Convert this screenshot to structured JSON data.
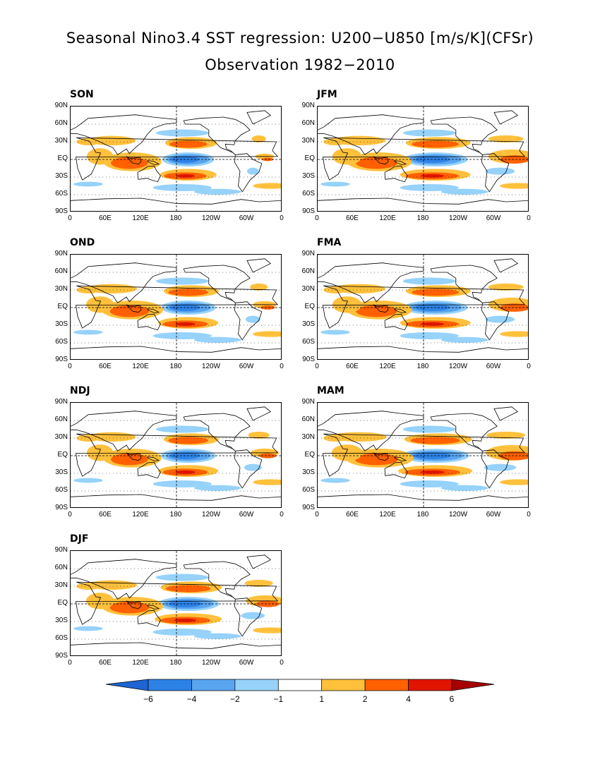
{
  "title_line1": "Seasonal Nino3.4 SST regression: U200−U850 [m/s/K](CFSr)",
  "title_line2": "Observation 1982−2010",
  "lat_ticks": [
    "90N",
    "60N",
    "30N",
    "EQ",
    "30S",
    "60S",
    "90S"
  ],
  "lon_ticks": [
    "0",
    "60E",
    "120E",
    "180",
    "120W",
    "60W",
    "0"
  ],
  "panels": [
    {
      "label": "SON",
      "strength": 0.8,
      "atlantic": 0.4,
      "west_pos": 0.9
    },
    {
      "label": "JFM",
      "strength": 1.0,
      "atlantic": 1.0,
      "west_pos": 1.0
    },
    {
      "label": "OND",
      "strength": 0.85,
      "atlantic": 0.5,
      "west_pos": 0.95
    },
    {
      "label": "FMA",
      "strength": 1.0,
      "atlantic": 1.0,
      "west_pos": 1.0
    },
    {
      "label": "NDJ",
      "strength": 0.85,
      "atlantic": 0.6,
      "west_pos": 0.9
    },
    {
      "label": "MAM",
      "strength": 1.05,
      "atlantic": 1.1,
      "west_pos": 1.05
    },
    {
      "label": "DJF",
      "strength": 0.95,
      "atlantic": 0.8,
      "west_pos": 0.95
    }
  ],
  "colorbar": {
    "labels": [
      "−6",
      "−4",
      "−2",
      "−1",
      "1",
      "2",
      "4",
      "6"
    ],
    "colors": [
      "#1e64d2",
      "#2d82e6",
      "#5aa5f0",
      "#96d2fa",
      "#ffffff",
      "#ffc03c",
      "#ff6000",
      "#e11400",
      "#a50000"
    ],
    "levels": [
      -6,
      -4,
      -2,
      -1,
      1,
      2,
      4,
      6
    ]
  }
}
